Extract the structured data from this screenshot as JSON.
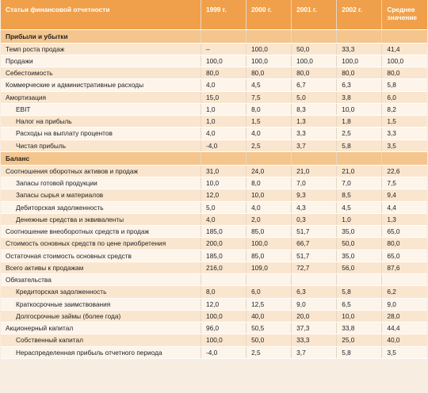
{
  "header": {
    "name": "Статьи финансовой отчетности",
    "years": [
      "1999 г.",
      "2000 г.",
      "2001 г.",
      "2002 г.",
      "Среднее значение"
    ]
  },
  "sections": [
    {
      "title": "Прибыли и убытки",
      "rows": [
        {
          "label": "Темп роста продаж",
          "indent": false,
          "values": [
            "–",
            "100,0",
            "50,0",
            "33,3",
            "41,4"
          ]
        },
        {
          "label": "Продажи",
          "indent": false,
          "values": [
            "100,0",
            "100,0",
            "100,0",
            "100,0",
            "100,0"
          ]
        },
        {
          "label": "Себестоимость",
          "indent": false,
          "values": [
            "80,0",
            "80,0",
            "80,0",
            "80,0",
            "80,0"
          ]
        },
        {
          "label": "Коммерческие и административные расходы",
          "indent": false,
          "values": [
            "4,0",
            "4,5",
            "6,7",
            "6,3",
            "5,8"
          ]
        },
        {
          "label": "Амортизация",
          "indent": false,
          "values": [
            "15,0",
            "7,5",
            "5,0",
            "3,8",
            "6,0"
          ]
        },
        {
          "label": "EBIT",
          "indent": true,
          "values": [
            "1,0",
            "8,0",
            "8,3",
            "10,0",
            "8,2"
          ]
        },
        {
          "label": "Налог на прибыль",
          "indent": true,
          "values": [
            "1,0",
            "1,5",
            "1,3",
            "1,8",
            "1,5"
          ]
        },
        {
          "label": "Расходы на выплату процентов",
          "indent": true,
          "values": [
            "4,0",
            "4,0",
            "3,3",
            "2,5",
            "3,3"
          ]
        },
        {
          "label": "Чистая прибыль",
          "indent": true,
          "values": [
            "-4,0",
            "2,5",
            "3,7",
            "5,8",
            "3,5"
          ]
        }
      ]
    },
    {
      "title": "Баланс",
      "rows": [
        {
          "label": "Соотношения оборотных активов и продаж",
          "indent": false,
          "values": [
            "31,0",
            "24,0",
            "21,0",
            "21,0",
            "22,6"
          ]
        },
        {
          "label": "Запасы готовой продукции",
          "indent": true,
          "values": [
            "10,0",
            "8,0",
            "7,0",
            "7,0",
            "7,5"
          ]
        },
        {
          "label": "Запасы сырья и материалов",
          "indent": true,
          "values": [
            "12,0",
            "10,0",
            "9,3",
            "8,5",
            "9,4"
          ]
        },
        {
          "label": "Дебиторская задолженность",
          "indent": true,
          "values": [
            "5,0",
            "4,0",
            "4,3",
            "4,5",
            "4,4"
          ]
        },
        {
          "label": "Денежные средства и эквиваленты",
          "indent": true,
          "values": [
            "4,0",
            "2,0",
            "0,3",
            "1,0",
            "1,3"
          ]
        },
        {
          "label": "Соотношение внеоборотных средств и продаж",
          "indent": false,
          "values": [
            "185,0",
            "85,0",
            "51,7",
            "35,0",
            "65,0"
          ]
        },
        {
          "label": "Стоимость основных средств по цене приобретения",
          "indent": false,
          "values": [
            "200,0",
            "100,0",
            "66,7",
            "50,0",
            "80,0"
          ]
        },
        {
          "label": "Остаточная стоимость основных средств",
          "indent": false,
          "values": [
            "185,0",
            "85,0",
            "51,7",
            "35,0",
            "65,0"
          ]
        },
        {
          "label": "Всего активы к продажам",
          "indent": false,
          "values": [
            "216,0",
            "109,0",
            "72,7",
            "56,0",
            "87,6"
          ]
        },
        {
          "label": "Обязательства",
          "indent": false,
          "values": [
            "",
            "",
            "",
            "",
            ""
          ]
        },
        {
          "label": "Кредиторская задолженность",
          "indent": true,
          "values": [
            "8,0",
            "6,0",
            "6,3",
            "5,8",
            "6,2"
          ]
        },
        {
          "label": "Краткосрочные заимствования",
          "indent": true,
          "values": [
            "12,0",
            "12,5",
            "9,0",
            "6,5",
            "9,0"
          ]
        },
        {
          "label": "Долгосрочные займы (более года)",
          "indent": true,
          "values": [
            "100,0",
            "40,0",
            "20,0",
            "10,0",
            "28,0"
          ]
        },
        {
          "label": "Акционерный капитал",
          "indent": false,
          "values": [
            "96,0",
            "50,5",
            "37,3",
            "33,8",
            "44,4"
          ]
        },
        {
          "label": "Собственный капитал",
          "indent": true,
          "values": [
            "100,0",
            "50,0",
            "33,3",
            "25,0",
            "40,0"
          ]
        },
        {
          "label": "Нераспределенная прибыль отчетного периода",
          "indent": true,
          "values": [
            "-4,0",
            "2,5",
            "3,7",
            "5,8",
            "3,5"
          ]
        }
      ]
    }
  ],
  "colors": {
    "header_bg": "#f0a04b",
    "section_bg": "#f4c58d",
    "row_alt_bg": "#fae6cf",
    "row_bg": "#fdf4ea"
  }
}
